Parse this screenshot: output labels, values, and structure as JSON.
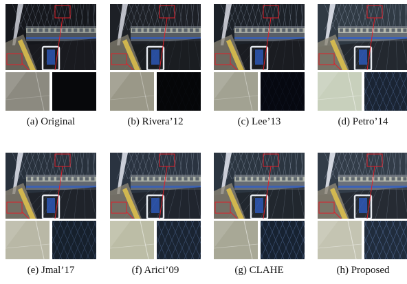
{
  "figure": {
    "panels": [
      {
        "caption": "(a)  Original",
        "tone": "#15171c",
        "glow": 0.35,
        "crop_left": "#8c8a80",
        "crop_right": "#07080b",
        "grid": 0.0
      },
      {
        "caption": "(b)  Rivera’12",
        "tone": "#1d2026",
        "glow": 0.45,
        "crop_left": "#9a9888",
        "crop_right": "#050608",
        "grid": 0.05
      },
      {
        "caption": "(c)  Lee’13",
        "tone": "#1c2128",
        "glow": 0.5,
        "crop_left": "#a2a292",
        "crop_right": "#060810",
        "grid": 0.1
      },
      {
        "caption": "(d)  Petro’14",
        "tone": "#303a44",
        "glow": 0.7,
        "crop_left": "#c8d0bc",
        "crop_right": "#1a2433",
        "grid": 0.55
      },
      {
        "caption": "(e)  Jmal’17",
        "tone": "#28313c",
        "glow": 0.6,
        "crop_left": "#b9b8a6",
        "crop_right": "#16202c",
        "grid": 0.45
      },
      {
        "caption": "(f)  Arici’09",
        "tone": "#2a3340",
        "glow": 0.6,
        "crop_left": "#bcbda6",
        "crop_right": "#1a2432",
        "grid": 0.55
      },
      {
        "caption": "(g)  CLAHE",
        "tone": "#2b3540",
        "glow": 0.65,
        "crop_left": "#a8a896",
        "crop_right": "#172231",
        "grid": 0.6
      },
      {
        "caption": "(h)  Proposed",
        "tone": "#323c48",
        "glow": 0.75,
        "crop_left": "#c4c4b2",
        "crop_right": "#202c3c",
        "grid": 0.7
      }
    ],
    "colors": {
      "box": "#e0202a",
      "stripe": "#e8c84a",
      "blue": "#2f5fc8"
    }
  }
}
